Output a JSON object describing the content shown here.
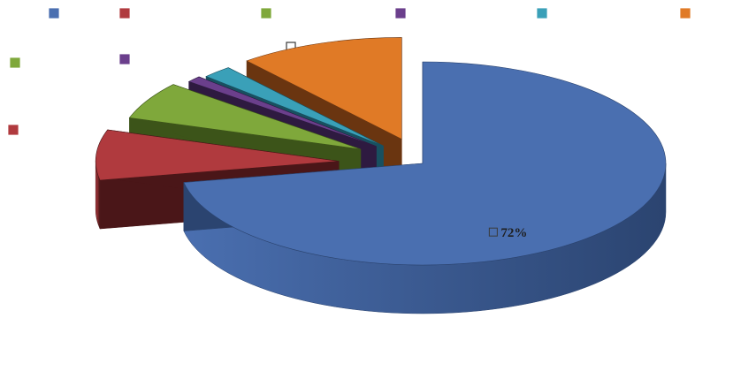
{
  "chart_data": {
    "type": "pie",
    "style": "3d-exploded",
    "legend_placement": "top",
    "slices": [
      {
        "value": 72,
        "data_label": "72%",
        "color": "#4a6fb0",
        "side_color": "#2b4470"
      },
      {
        "value": 8,
        "data_label": "",
        "color": "#b03a3e",
        "side_color": "#4a1618"
      },
      {
        "value": 6,
        "data_label": "",
        "color": "#7fa83b",
        "side_color": "#3c5419"
      },
      {
        "value": 1,
        "data_label": "",
        "color": "#6b3f8c",
        "side_color": "#2e1a40"
      },
      {
        "value": 2,
        "data_label": "",
        "color": "#3aa0b8",
        "side_color": "#185060"
      },
      {
        "value": 11,
        "data_label": "",
        "color": "#e07a26",
        "side_color": "#6a3510"
      }
    ]
  }
}
